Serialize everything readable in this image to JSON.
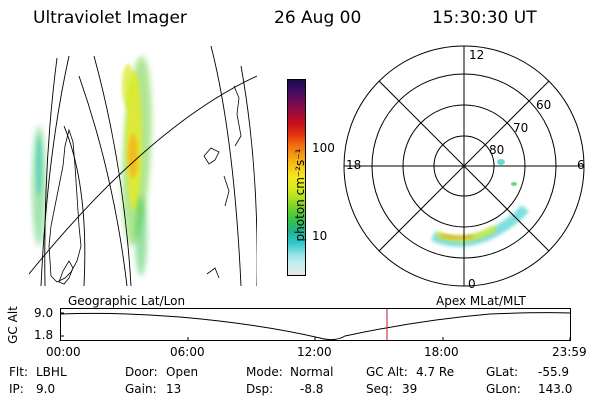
{
  "header": {
    "instrument": "Ultraviolet Imager",
    "date": "26 Aug 00",
    "time": "15:30:30 UT"
  },
  "colorbar": {
    "unit_label": "photon cm⁻²s⁻¹",
    "ticks": [
      "100",
      "10"
    ],
    "colors": [
      "#e6e6e6",
      "#c8eef0",
      "#8ee0e6",
      "#2bc7c7",
      "#21b38f",
      "#31c24e",
      "#67d02a",
      "#a7de23",
      "#d6ea20",
      "#f2ea1e",
      "#f7c617",
      "#f59b12",
      "#f06c0f",
      "#e2320f",
      "#c70f1f",
      "#9d0b3a",
      "#6e0b55",
      "#400b62",
      "#1a0b4a"
    ]
  },
  "polar": {
    "mlt_labels": [
      "12",
      "18",
      "6",
      "0"
    ],
    "lat_labels": [
      "60",
      "70",
      "80"
    ]
  },
  "timeline": {
    "ylabel": "GC Alt",
    "yticks": [
      "9.0",
      "1.8"
    ],
    "left_title": "Geographic Lat/Lon",
    "right_title": "Apex MLat/MLT",
    "xticks": [
      "00:00",
      "06:00",
      "12:00",
      "18:00",
      "23:59"
    ],
    "marker_color": "#c8102e"
  },
  "footer": {
    "flt_label": "Flt:",
    "flt_value": "LBHL",
    "ip_label": "IP:",
    "ip_value": "9.0",
    "door_label": "Door:",
    "door_value": "Open",
    "gain_label": "Gain:",
    "gain_value": "13",
    "mode_label": "Mode:",
    "mode_value": "Normal",
    "dsp_label": "Dsp:",
    "dsp_value": "-8.8",
    "gcalt_label": "GC Alt:",
    "gcalt_value": "4.7 Re",
    "seq_label": "Seq:",
    "seq_value": "39",
    "glat_label": "GLat:",
    "glat_value": "-55.9",
    "glon_label": "GLon:",
    "glon_value": "143.0"
  }
}
